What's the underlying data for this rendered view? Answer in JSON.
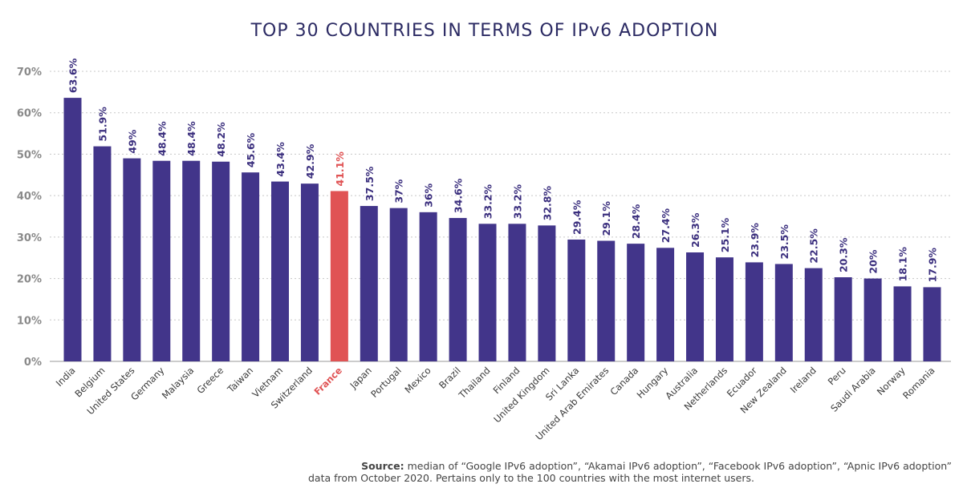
{
  "chart_data": {
    "type": "bar",
    "title": "TOP 30 COUNTRIES IN TERMS OF IPv6 ADOPTION",
    "xlabel": "",
    "ylabel": "",
    "ylim": [
      0,
      70
    ],
    "yticks": [
      "0%",
      "10%",
      "20%",
      "30%",
      "40%",
      "50%",
      "60%",
      "70%"
    ],
    "grid": true,
    "categories": [
      "India",
      "Belgium",
      "United States",
      "Germany",
      "Malaysia",
      "Greece",
      "Taiwan",
      "Vietnam",
      "Switzerland",
      "France",
      "Japan",
      "Portugal",
      "Mexico",
      "Brazil",
      "Thailand",
      "Finland",
      "United Kingdom",
      "Sri Lanka",
      "United Arab Emirates",
      "Canada",
      "Hungary",
      "Australia",
      "Netherlands",
      "Ecuador",
      "New Zealand",
      "Ireland",
      "Peru",
      "Saudi Arabia",
      "Norway",
      "Romania"
    ],
    "values": [
      63.6,
      51.9,
      49,
      48.4,
      48.4,
      48.2,
      45.6,
      43.4,
      42.9,
      41.1,
      37.5,
      37,
      36,
      34.6,
      33.2,
      33.2,
      32.8,
      29.4,
      29.1,
      28.4,
      27.4,
      26.3,
      25.1,
      23.9,
      23.5,
      22.5,
      20.3,
      20,
      18.1,
      17.9
    ],
    "labels": [
      "63.6%",
      "51.9%",
      "49%",
      "48.4%",
      "48.4%",
      "48.2%",
      "45.6%",
      "43.4%",
      "42.9%",
      "41.1%",
      "37.5%",
      "37%",
      "36%",
      "34.6%",
      "33.2%",
      "33.2%",
      "32.8%",
      "29.4%",
      "29.1%",
      "28.4%",
      "27.4%",
      "26.3%",
      "25.1%",
      "23.9%",
      "23.5%",
      "22.5%",
      "20.3%",
      "20%",
      "18.1%",
      "17.9%"
    ],
    "highlight": "France",
    "colors": {
      "bar": "#42358a",
      "highlight": "#e05354",
      "title": "#2b2a63"
    }
  },
  "source": {
    "label": "Source:",
    "line1": "median of “Google IPv6 adoption”, “Akamai IPv6 adoption”, “Facebook IPv6 adoption”, “Apnic IPv6 adoption”",
    "line2": "data from October 2020. Pertains only to the 100 countries with the most internet users."
  }
}
